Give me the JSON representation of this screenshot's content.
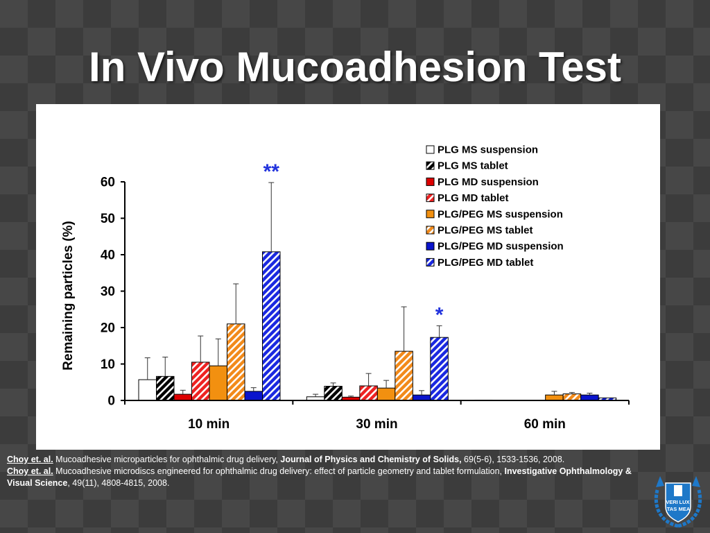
{
  "title": "In Vivo Mucoadhesion Test",
  "chart_data": {
    "type": "bar",
    "categories": [
      "10 min",
      "30 min",
      "60 min"
    ],
    "ylabel": "Remaining particles (%)",
    "ylim": [
      0,
      60
    ],
    "yticks": [
      0,
      10,
      20,
      30,
      40,
      50,
      60
    ],
    "legend_position": "top-right",
    "series": [
      {
        "name": "PLG MS suspension",
        "values": [
          5.7,
          1.0,
          0.1
        ],
        "errors": [
          6.0,
          0.7,
          0
        ],
        "color": "#ffffff",
        "pattern": "solid"
      },
      {
        "name": "PLG MS tablet",
        "values": [
          6.6,
          3.9,
          0
        ],
        "errors": [
          5.3,
          0.9,
          0
        ],
        "color": "#000000",
        "pattern": "hatch"
      },
      {
        "name": "PLG MD suspension",
        "values": [
          1.7,
          0.9,
          0
        ],
        "errors": [
          1.1,
          0.3,
          0
        ],
        "color": "#dd0000",
        "pattern": "solid"
      },
      {
        "name": "PLG MD tablet",
        "values": [
          10.5,
          4.0,
          0
        ],
        "errors": [
          7.2,
          3.4,
          0
        ],
        "color": "#ee2222",
        "pattern": "hatch"
      },
      {
        "name": "PLG/PEG MS suspension",
        "values": [
          9.5,
          3.4,
          1.5
        ],
        "errors": [
          7.4,
          2.1,
          1.0
        ],
        "color": "#f29010",
        "pattern": "solid"
      },
      {
        "name": "PLG/PEG MS tablet",
        "values": [
          21.0,
          13.5,
          1.8
        ],
        "errors": [
          11.0,
          12.2,
          0.4
        ],
        "color": "#f28a1a",
        "pattern": "hatch"
      },
      {
        "name": "PLG/PEG MD suspension",
        "values": [
          2.5,
          1.5,
          1.5
        ],
        "errors": [
          1.0,
          1.2,
          0.5
        ],
        "color": "#0a14cc",
        "pattern": "solid"
      },
      {
        "name": "PLG/PEG MD tablet",
        "values": [
          40.8,
          17.3,
          0.7
        ],
        "errors": [
          19.0,
          3.2,
          0
        ],
        "color": "#1a28e0",
        "pattern": "hatch"
      }
    ],
    "annotations": [
      {
        "text": "**",
        "category": "10 min",
        "series": "PLG/PEG MD tablet"
      },
      {
        "text": "*",
        "category": "30 min",
        "series": "PLG/PEG MD tablet"
      }
    ]
  },
  "references": [
    {
      "author": "Choy et. al.",
      "text": " Mucoadhesive microparticles for ophthalmic drug delivery, ",
      "journal": "Journal of Physics and Chemistry of Solids,",
      "detail": " 69(5-6), 1533-1536, 2008."
    },
    {
      "author": "Choy et. al.",
      "text": " Mucoadhesive microdiscs engineered for ophthalmic drug delivery: effect of particle geometry and tablet formulation, ",
      "journal": "Investigative Ophthalmology & Visual Science",
      "detail": ", 49(11), 4808-4815, 2008."
    }
  ],
  "logo": {
    "text_lines": [
      "VERI",
      "LUX",
      "TAS",
      "MEA"
    ],
    "color": "#1e78c8"
  }
}
